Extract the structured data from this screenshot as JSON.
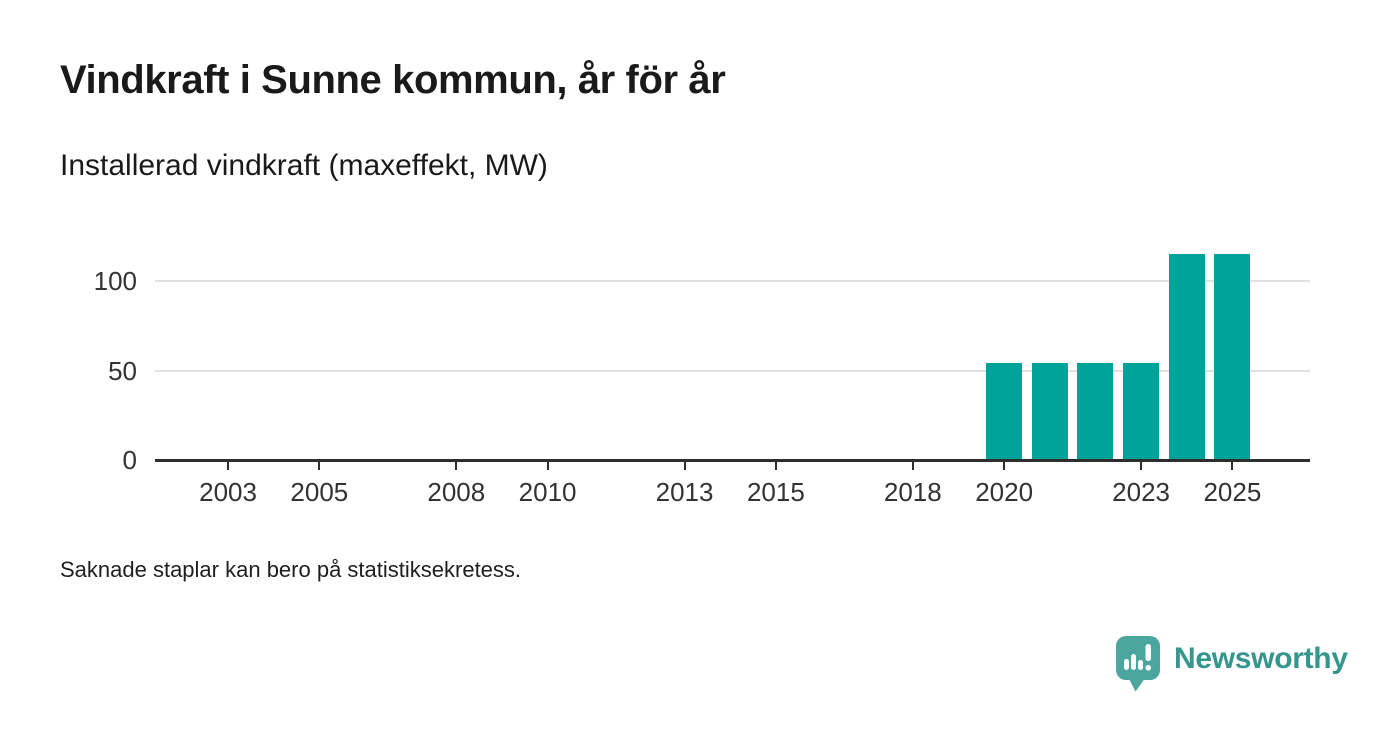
{
  "header": {
    "title": "Vindkraft i Sunne kommun, år för år",
    "subtitle": "Installerad vindkraft (maxeffekt, MW)"
  },
  "footer": {
    "note": "Saknade staplar kan bero på statistiksekretess.",
    "brand": "Newsworthy"
  },
  "colors": {
    "bar_teal": "#00a399",
    "logo_teal": "#4aa69e",
    "wordmark_teal": "#35968e",
    "axis": "#2e2e2e",
    "gridline": "#e1e1e1",
    "text": "#1a1a1a"
  },
  "chart_data": {
    "type": "bar",
    "title": "Vindkraft i Sunne kommun, år för år",
    "subtitle": "Installerad vindkraft (maxeffekt, MW)",
    "ylabel": "Installerad vindkraft (maxeffekt, MW)",
    "unit": "MW",
    "x": [
      2020,
      2021,
      2022,
      2023,
      2024,
      2025
    ],
    "values": [
      54,
      54,
      54,
      54,
      115,
      115
    ],
    "x_axis": {
      "ticks": [
        2003,
        2005,
        2008,
        2010,
        2013,
        2015,
        2018,
        2020,
        2023,
        2025
      ],
      "range": [
        2001.4,
        2026.7
      ]
    },
    "y_axis": {
      "ticks": [
        0,
        50,
        100
      ],
      "range": [
        0,
        117
      ]
    },
    "grid": "horizontal gridlines at 50 and 100",
    "legend": "none",
    "bar_color": "#00a399",
    "note": "Saknade staplar kan bero på statistiksekretess."
  }
}
